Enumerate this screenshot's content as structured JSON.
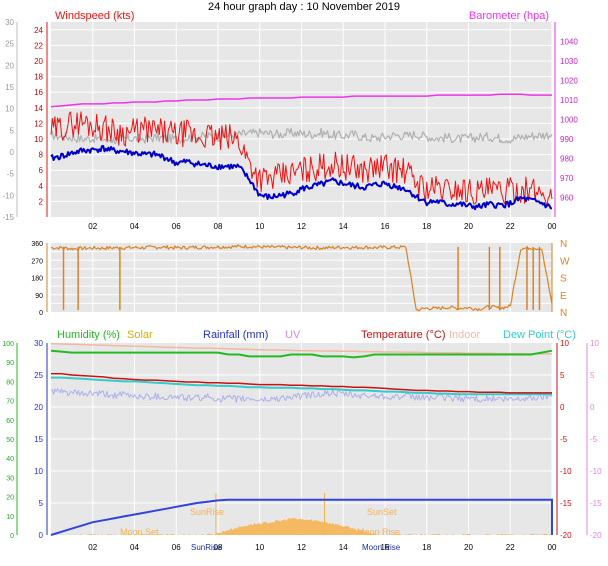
{
  "title": "24 hour graph day : 10 November 2019",
  "colors": {
    "wind_speed": "#ee1111",
    "wind_avg": "#0000cc",
    "gust_gray": "#b0b0b0",
    "barometer": "#ee33ee",
    "direction": "#d98326",
    "humidity": "#22bb22",
    "solar": "#c8b400",
    "rainfall": "#2233cc",
    "uv": "#dd88dd",
    "temperature": "#cc1111",
    "indoor": "#f2b8a0",
    "dew_point": "#33cccc",
    "apparent": "#aab0ee",
    "solar_fill": "#f5b453",
    "rain_fill": "#3344dd",
    "plot_bg": "#e7e7e7"
  },
  "x_tick_labels": [
    "02",
    "04",
    "06",
    "08",
    "10",
    "12",
    "14",
    "16",
    "18",
    "20",
    "22",
    "00"
  ],
  "chart_data": [
    {
      "type": "line",
      "panel": "wind",
      "x": [
        0,
        0.5,
        1,
        1.5,
        2,
        2.5,
        3,
        3.5,
        4,
        4.5,
        5,
        5.5,
        6,
        6.5,
        7,
        7.5,
        8,
        8.5,
        9,
        9.5,
        10,
        10.5,
        11,
        11.5,
        12,
        12.5,
        13,
        13.5,
        14,
        14.5,
        15,
        15.5,
        16,
        16.5,
        17,
        17.5,
        18,
        18.5,
        19,
        19.5,
        20,
        20.5,
        21,
        21.5,
        22,
        22.5,
        23,
        23.5,
        24
      ],
      "left_axis": {
        "label": "Windspeed (kts)",
        "ylim": [
          0,
          25
        ],
        "ticks": [
          2,
          4,
          6,
          8,
          10,
          12,
          14,
          16,
          18,
          20,
          22,
          24
        ]
      },
      "outer_left_axis": {
        "ylim": [
          -15,
          30
        ],
        "ticks": [
          -15,
          -10,
          -5,
          0,
          5,
          10,
          15,
          20,
          25,
          30
        ]
      },
      "right_axis": {
        "label": "Barometer (hpa)",
        "ylim": [
          950,
          1050
        ],
        "ticks": [
          960,
          970,
          980,
          990,
          1000,
          1010,
          1020,
          1030,
          1040
        ]
      },
      "series": [
        {
          "name": "Windspeed",
          "values": [
            11,
            11.5,
            12,
            12.2,
            11.8,
            11.5,
            11,
            10.8,
            11,
            11.2,
            11,
            10.8,
            10.5,
            10.8,
            10.2,
            10.5,
            10,
            10.2,
            9.8,
            7,
            5,
            4.8,
            5.2,
            5.5,
            6,
            6.2,
            6.5,
            6.8,
            6.5,
            6.2,
            6,
            6.3,
            6.5,
            6.1,
            5.8,
            4.5,
            3.6,
            3.7,
            3.5,
            3.6,
            3.4,
            3.2,
            3.4,
            3.2,
            3.3,
            3.6,
            3.3,
            3.2,
            2.3
          ]
        },
        {
          "name": "Windspeed avg",
          "values": [
            7.5,
            7.8,
            8.2,
            8.5,
            8.6,
            8.8,
            8.5,
            8.4,
            8.2,
            8,
            8,
            7.6,
            6.9,
            7.1,
            6.8,
            6.6,
            6.5,
            6.5,
            6.4,
            4.8,
            2.8,
            2.5,
            2.8,
            3,
            3.6,
            3.9,
            4.2,
            4.6,
            4.3,
            4,
            3.8,
            4.1,
            4.3,
            3.9,
            3.6,
            2.6,
            1.9,
            2,
            1.6,
            1.7,
            1.4,
            1.3,
            1.6,
            1.5,
            1.7,
            2.4,
            2.1,
            1.8,
            1.1
          ]
        },
        {
          "name": "Gust",
          "values": [
            10.5,
            10.3,
            10.2,
            10,
            10.1,
            10,
            9.9,
            10,
            10.1,
            10,
            10.2,
            10.1,
            10,
            10.2,
            10.3,
            10.4,
            10.3,
            10.5,
            10.6,
            10.7,
            10.8,
            10.7,
            10.6,
            10.8,
            10.7,
            10.6,
            10.8,
            10.5,
            10.4,
            10.6,
            10.2,
            10.1,
            10.3,
            10.5,
            10.4,
            10.6,
            10.3,
            10.1,
            10.2,
            10,
            10.1,
            10.2,
            10.3,
            10.1,
            10,
            10.2,
            10.4,
            10.5,
            10.6
          ]
        },
        {
          "name": "Barometer",
          "values": [
            1006.5,
            1007,
            1007.5,
            1008,
            1008,
            1008,
            1008.5,
            1008.5,
            1009,
            1009,
            1009,
            1009.5,
            1009.5,
            1010,
            1010,
            1010,
            1010.5,
            1010.5,
            1010.5,
            1011,
            1011,
            1011,
            1011,
            1011,
            1011.5,
            1011.5,
            1011.5,
            1011.5,
            1011.5,
            1012,
            1012,
            1012,
            1012,
            1012,
            1012,
            1012,
            1012,
            1012.5,
            1012.5,
            1012.5,
            1012.5,
            1012.5,
            1012.5,
            1013,
            1013,
            1013,
            1012.5,
            1012.5,
            1012.5
          ]
        }
      ]
    },
    {
      "type": "line",
      "panel": "wind_direction",
      "x": [
        0,
        0.5,
        1,
        1.5,
        2,
        2.5,
        3,
        3.5,
        4,
        4.5,
        5,
        5.5,
        6,
        6.5,
        7,
        7.5,
        8,
        8.5,
        9,
        9.5,
        10,
        10.5,
        11,
        11.5,
        12,
        12.5,
        13,
        13.5,
        14,
        14.5,
        15,
        15.5,
        16,
        16.5,
        17,
        17.5,
        18,
        18.5,
        19,
        19.5,
        20,
        20.5,
        21,
        21.5,
        22,
        22.5,
        23,
        23.5,
        24
      ],
      "left_axis": {
        "ylim": [
          0,
          360
        ],
        "ticks": [
          0,
          45,
          90,
          135,
          180,
          225,
          270,
          315,
          360
        ]
      },
      "right_axis": {
        "ticks": [
          "N",
          "E",
          "S",
          "W",
          "N"
        ]
      },
      "series": [
        {
          "name": "Wind direction",
          "values": [
            335,
            335,
            330,
            332,
            334,
            333,
            335,
            335,
            336,
            336,
            338,
            338,
            335,
            336,
            338,
            338,
            340,
            340,
            342,
            342,
            340,
            338,
            338,
            336,
            337,
            335,
            334,
            336,
            338,
            336,
            338,
            336,
            337,
            338,
            338,
            10,
            20,
            18,
            25,
            20,
            22,
            15,
            28,
            20,
            30,
            330,
            335,
            330,
            40
          ]
        }
      ]
    },
    {
      "type": "line",
      "panel": "temperature_humidity",
      "x": [
        0,
        0.5,
        1,
        1.5,
        2,
        2.5,
        3,
        3.5,
        4,
        4.5,
        5,
        5.5,
        6,
        6.5,
        7,
        7.5,
        8,
        8.5,
        9,
        9.5,
        10,
        10.5,
        11,
        11.5,
        12,
        12.5,
        13,
        13.5,
        14,
        14.5,
        15,
        15.5,
        16,
        16.5,
        17,
        17.5,
        18,
        18.5,
        19,
        19.5,
        20,
        20.5,
        21,
        21.5,
        22,
        22.5,
        23,
        23.5,
        24
      ],
      "outer_left_axis": {
        "label": "Humidity (%)",
        "ylim": [
          0,
          100
        ],
        "ticks": [
          0,
          10,
          20,
          30,
          40,
          50,
          60,
          70,
          80,
          90,
          100
        ]
      },
      "left_axis": {
        "label": "Rainfall (mm)",
        "ylim": [
          0,
          30
        ],
        "ticks": [
          0,
          5,
          10,
          15,
          20,
          25,
          30
        ]
      },
      "right_axis": {
        "label": "Temperature (°C)",
        "ylim": [
          -20,
          10
        ],
        "ticks": [
          -20,
          -15,
          -10,
          -5,
          0,
          5,
          10
        ]
      },
      "outer_right_axis": {
        "ylim": [
          -20,
          10
        ],
        "ticks": [
          -20,
          -15,
          -10,
          -5,
          0,
          5,
          10
        ]
      },
      "legend": [
        "Humidity (%)",
        "Solar",
        "Rainfall (mm)",
        "UV",
        "Temperature (°C)",
        "Indoor",
        "Dew Point (°C)"
      ],
      "series": [
        {
          "name": "Humidity (%)",
          "values": [
            96,
            95.5,
            95,
            95,
            95,
            95,
            95,
            95,
            95,
            95,
            95,
            95,
            95,
            95,
            95,
            95,
            95,
            94,
            94,
            93,
            93,
            93,
            93,
            94,
            94,
            94,
            93,
            93,
            93,
            92.5,
            93,
            94,
            94,
            94,
            94,
            94,
            94,
            94,
            94,
            94,
            94,
            94,
            94,
            94,
            94,
            94,
            94,
            95,
            96
          ]
        },
        {
          "name": "Temperature (°C)",
          "values": [
            5.2,
            5.2,
            5,
            4.9,
            4.8,
            4.7,
            4.5,
            4.4,
            4.3,
            4.2,
            4.2,
            4.1,
            4,
            3.9,
            3.9,
            3.8,
            3.8,
            3.7,
            3.7,
            3.6,
            3.5,
            3.5,
            3.5,
            3.4,
            3.4,
            3.3,
            3.3,
            3.2,
            3.2,
            3.1,
            3.1,
            3,
            2.9,
            2.8,
            2.7,
            2.6,
            2.6,
            2.5,
            2.5,
            2.4,
            2.4,
            2.3,
            2.3,
            2.3,
            2.2,
            2.2,
            2.2,
            2.2,
            2.2
          ]
        },
        {
          "name": "Dew Point (°C)",
          "values": [
            4.6,
            4.6,
            4.5,
            4.4,
            4.3,
            4.2,
            4.1,
            4,
            4,
            3.9,
            3.8,
            3.7,
            3.6,
            3.5,
            3.4,
            3.4,
            3.3,
            3.3,
            3.2,
            3.1,
            3.1,
            3,
            3,
            3,
            2.9,
            2.9,
            2.8,
            2.8,
            2.7,
            2.6,
            2.6,
            2.5,
            2.4,
            2.4,
            2.3,
            2.2,
            2.2,
            2.1,
            2.1,
            2,
            2,
            2,
            2,
            2,
            2,
            2,
            2,
            2,
            2
          ]
        },
        {
          "name": "Indoor",
          "values": [
            9.9,
            9.85,
            9.8,
            9.75,
            9.7,
            9.65,
            9.6,
            9.55,
            9.5,
            9.45,
            9.4,
            9.35,
            9.3,
            9.25,
            9.2,
            9.2,
            9.15,
            9.1,
            9.05,
            9,
            8.95,
            8.9,
            8.9,
            8.85,
            8.8,
            8.8,
            8.75,
            8.75,
            8.7,
            8.7,
            8.65,
            8.65,
            8.6,
            8.6,
            8.55,
            8.55,
            8.5,
            8.5,
            8.45,
            8.45,
            8.4,
            8.4,
            8.4,
            8.35,
            8.35,
            8.35,
            8.3,
            8.3,
            8.3
          ]
        },
        {
          "name": "Apparent",
          "values": [
            2.5,
            2.3,
            2.2,
            2,
            2.1,
            2,
            1.8,
            1.9,
            1.7,
            1.6,
            1.7,
            1.5,
            1.6,
            1.4,
            1.4,
            1.5,
            1.3,
            1.3,
            1.2,
            1.3,
            1.1,
            1.2,
            1.4,
            1.5,
            1.7,
            1.9,
            2,
            2.2,
            2,
            1.8,
            1.7,
            1.8,
            1.7,
            1.6,
            1.6,
            1.5,
            1.5,
            1.4,
            1.5,
            1.3,
            1.4,
            1.3,
            1.3,
            1.2,
            1.1,
            1.3,
            1.4,
            1.6,
            1.8
          ]
        },
        {
          "name": "Rainfall (mm)",
          "values": [
            0,
            0.5,
            1,
            1.5,
            2,
            2.3,
            2.6,
            2.9,
            3.2,
            3.5,
            3.8,
            4.1,
            4.4,
            4.7,
            5,
            5.2,
            5.4,
            5.5,
            5.5,
            5.5,
            5.5,
            5.5,
            5.5,
            5.5,
            5.5,
            5.5,
            5.5,
            5.5,
            5.5,
            5.5,
            5.5,
            5.5,
            5.5,
            5.5,
            5.5,
            5.5,
            5.5,
            5.5,
            5.5,
            5.5,
            5.5,
            5.5,
            5.5,
            5.5,
            5.5,
            5.5,
            5.5,
            5.5,
            5.5
          ]
        },
        {
          "name": "Solar",
          "values": [
            0,
            0,
            0,
            0,
            0,
            0,
            0,
            0,
            0,
            0,
            0,
            0,
            0,
            0,
            0,
            0,
            0.3,
            0.8,
            1.2,
            1.6,
            1.8,
            2,
            2.2,
            2.6,
            2.4,
            2.3,
            2.1,
            1.8,
            1.4,
            1,
            0.5,
            0.2,
            0,
            0,
            0,
            0,
            0,
            0,
            0,
            0,
            0,
            0,
            0,
            0,
            0,
            0,
            0,
            0,
            0
          ]
        }
      ]
    }
  ],
  "annotations": {
    "moon_set": "Moon Set",
    "sun_rise": "SunRise",
    "sun_set": "SunSet",
    "moon_rise": "Moon Rise"
  }
}
